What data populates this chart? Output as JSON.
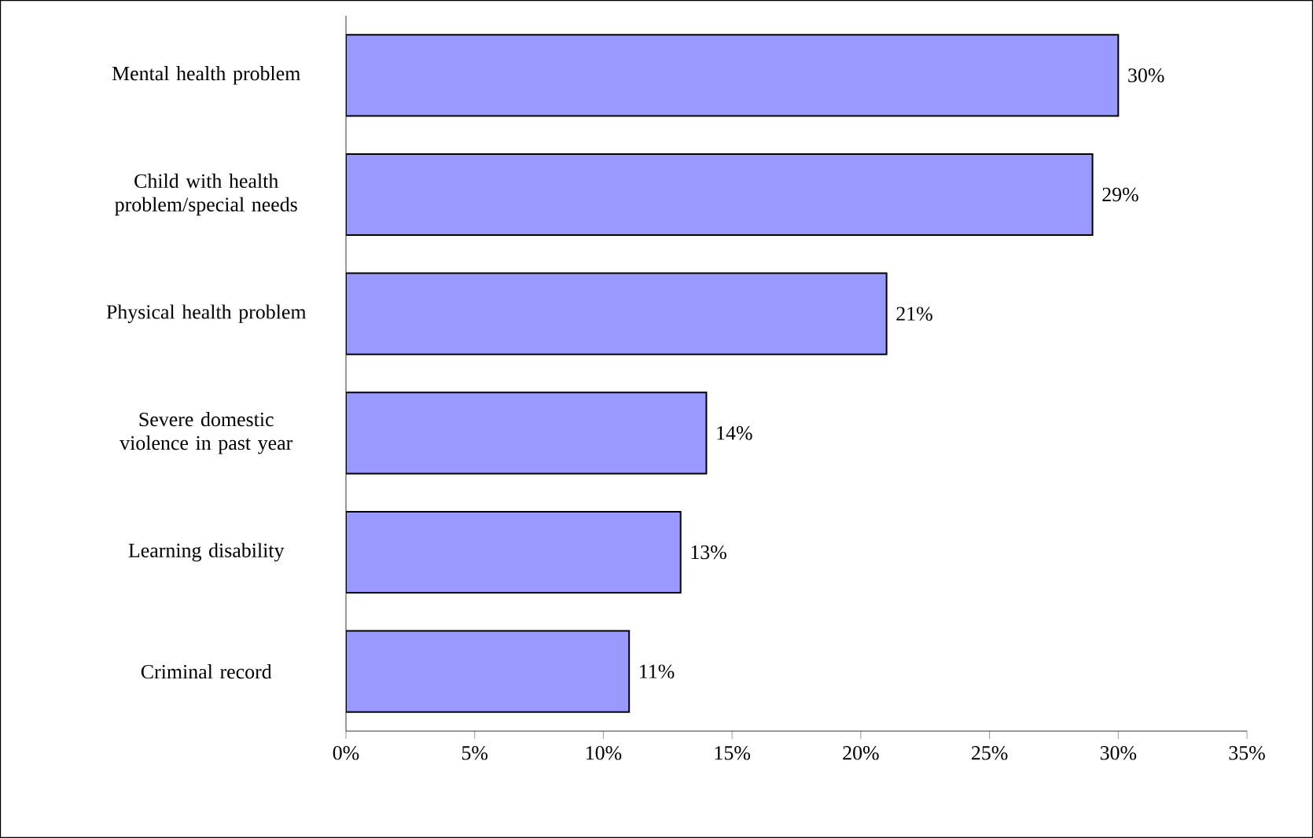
{
  "chart_data": {
    "type": "bar",
    "orientation": "horizontal",
    "categories": [
      "Mental health problem",
      "Child with health problem/special needs",
      "Physical health problem",
      "Severe domestic violence in past year",
      "Learning disability",
      "Criminal record"
    ],
    "values": [
      30,
      29,
      21,
      14,
      13,
      11
    ],
    "value_labels": [
      "30%",
      "29%",
      "21%",
      "14%",
      "13%",
      "11%"
    ],
    "color": "#9999ff",
    "xlim": [
      0,
      35
    ],
    "xticks": [
      {
        "value": 0,
        "label": "0%"
      },
      {
        "value": 5,
        "label": "5%"
      },
      {
        "value": 10,
        "label": "10%"
      },
      {
        "value": 15,
        "label": "15%"
      },
      {
        "value": 20,
        "label": "20%"
      },
      {
        "value": 25,
        "label": "25%"
      },
      {
        "value": 30,
        "label": "30%"
      },
      {
        "value": 35,
        "label": "35%"
      }
    ]
  }
}
